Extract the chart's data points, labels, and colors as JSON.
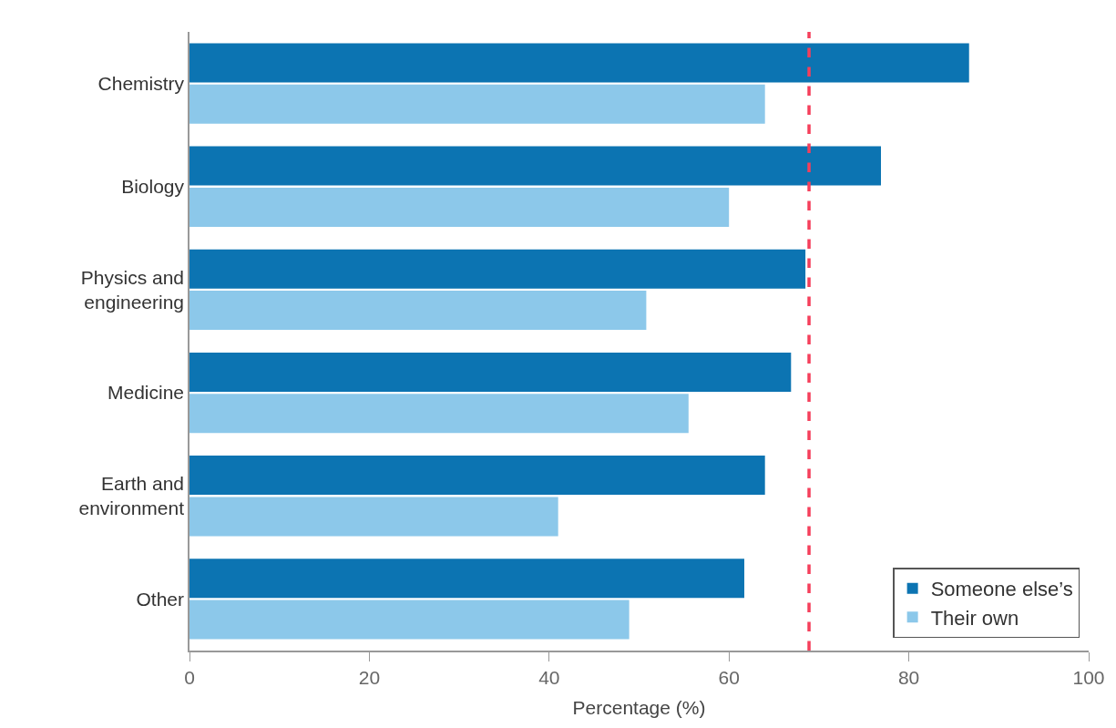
{
  "chart_data": {
    "type": "bar",
    "orientation": "horizontal",
    "xlabel": "Percentage (%)",
    "categories": [
      "Chemistry",
      "Biology",
      "Physics and engineering",
      "Medicine",
      "Earth and environment",
      "Other"
    ],
    "series": [
      {
        "name": "Someone else’s",
        "color": "#0c74b2",
        "values": [
          86.7,
          76.9,
          68.5,
          66.9,
          64.0,
          61.7
        ]
      },
      {
        "name": "Their own",
        "color": "#8cc8ea",
        "values": [
          64.0,
          60.0,
          50.8,
          55.5,
          41.0,
          48.9
        ]
      }
    ],
    "xlim": [
      0,
      100
    ],
    "xticks": [
      0,
      20,
      40,
      60,
      80,
      100
    ],
    "ref_lines": [
      {
        "axis": "x",
        "value": 68.9,
        "color": "#f53f5b",
        "line_style": "dashed"
      }
    ],
    "legend": "bottom right"
  }
}
